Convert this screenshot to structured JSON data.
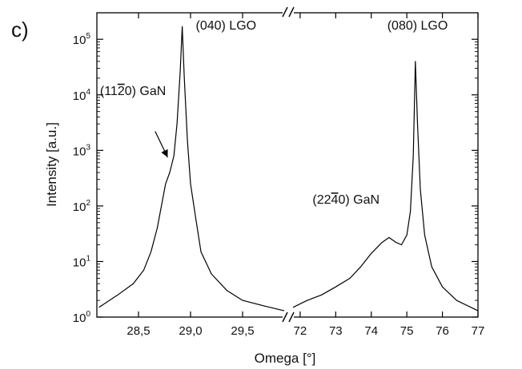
{
  "panel_label": "c)",
  "chart_data": {
    "type": "line",
    "title": "",
    "xlabel": "Omega [°]",
    "ylabel": "Intensity [a.u.]",
    "yscale": "log",
    "ylim": [
      1,
      300000
    ],
    "broken_x_axis": true,
    "grid": false,
    "y_ticks": [
      {
        "value": 1,
        "base": "10",
        "exp": "0"
      },
      {
        "value": 10,
        "base": "10",
        "exp": "1"
      },
      {
        "value": 100,
        "base": "10",
        "exp": "2"
      },
      {
        "value": 1000,
        "base": "10",
        "exp": "3"
      },
      {
        "value": 10000,
        "base": "10",
        "exp": "4"
      },
      {
        "value": 100000,
        "base": "10",
        "exp": "5"
      }
    ],
    "segments": [
      {
        "xlim": [
          28.1,
          29.9
        ],
        "ticks": [
          {
            "value": 28.5,
            "label": "28,5"
          },
          {
            "value": 29.0,
            "label": "29,0"
          },
          {
            "value": 29.5,
            "label": "29,5"
          }
        ],
        "x": [
          28.12,
          28.3,
          28.45,
          28.55,
          28.62,
          28.68,
          28.72,
          28.76,
          28.8,
          28.84,
          28.87,
          28.9,
          28.92,
          28.94,
          28.97,
          29.0,
          29.05,
          29.1,
          29.2,
          29.35,
          29.5,
          29.7,
          29.9
        ],
        "y": [
          1.5,
          2.5,
          4,
          7,
          15,
          40,
          100,
          250,
          400,
          800,
          3000,
          25000,
          170000,
          20000,
          1500,
          250,
          60,
          15,
          6,
          3,
          2,
          1.6,
          1.3
        ]
      },
      {
        "xlim": [
          71.8,
          77.0
        ],
        "ticks": [
          {
            "value": 72,
            "label": "72"
          },
          {
            "value": 73,
            "label": "73"
          },
          {
            "value": 74,
            "label": "74"
          },
          {
            "value": 75,
            "label": "75"
          },
          {
            "value": 76,
            "label": "76"
          },
          {
            "value": 77,
            "label": "77"
          }
        ],
        "x": [
          71.8,
          72.2,
          72.6,
          73.0,
          73.4,
          73.7,
          74.0,
          74.3,
          74.5,
          74.7,
          74.85,
          75.0,
          75.1,
          75.18,
          75.24,
          75.3,
          75.38,
          75.5,
          75.7,
          76.0,
          76.4,
          77.0
        ],
        "y": [
          1.5,
          2,
          2.5,
          3.5,
          5,
          8,
          14,
          22,
          27,
          22,
          20,
          30,
          80,
          800,
          40000,
          3000,
          200,
          30,
          8,
          3.5,
          2,
          1.3
        ]
      }
    ],
    "annotations": [
      {
        "label": "(040) LGO",
        "segment": 0,
        "x": 29.05,
        "y": 150000
      },
      {
        "label": "(080) LGO",
        "segment": 1,
        "x": 74.45,
        "y": 150000
      },
      {
        "label_pre": "(11",
        "label_bar": "2",
        "label_post": "0) GaN",
        "segment": 0,
        "x": 28.13,
        "y": 10000
      },
      {
        "label_pre": "(22",
        "label_bar": "4",
        "label_post": "0) GaN",
        "segment": 1,
        "x": 72.35,
        "y": 110
      }
    ],
    "arrow": {
      "segment": 0,
      "from": [
        28.66,
        2200
      ],
      "to": [
        28.78,
        750
      ]
    }
  }
}
